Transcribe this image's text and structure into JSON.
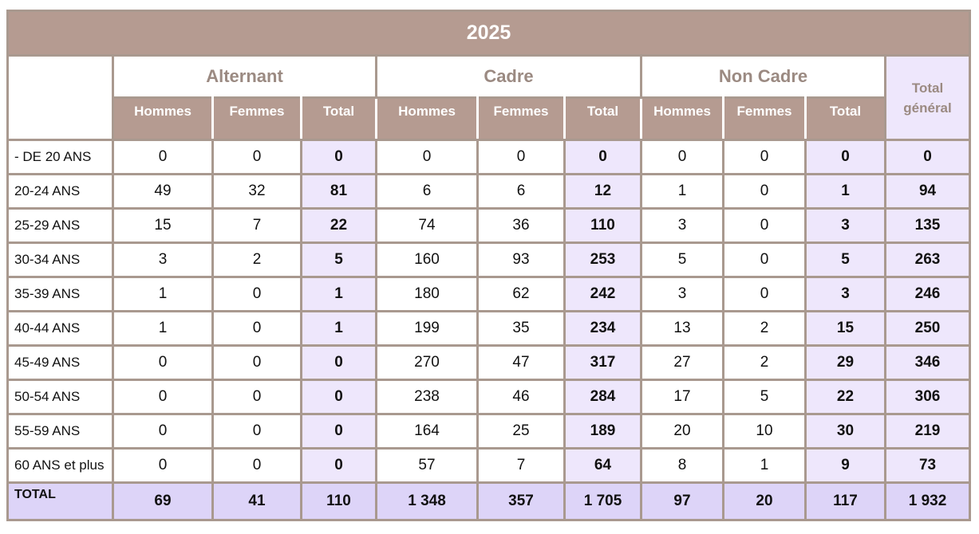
{
  "header": {
    "title": "2025"
  },
  "table": {
    "groups": [
      "Alternant",
      "Cadre",
      "Non Cadre"
    ],
    "total_header": "Total général",
    "subheaders": [
      "Hommes",
      "Femmes",
      "Total",
      "Hommes",
      "Femmes",
      "Total",
      "Hommes",
      "Femmes",
      "Total"
    ],
    "rows": [
      [
        "- DE 20 ANS",
        "0",
        "0",
        "0",
        "0",
        "0",
        "0",
        "0",
        "0",
        "0",
        "0"
      ],
      [
        "20-24 ANS",
        "49",
        "32",
        "81",
        "6",
        "6",
        "12",
        "1",
        "0",
        "1",
        "94"
      ],
      [
        "25-29 ANS",
        "15",
        "7",
        "22",
        "74",
        "36",
        "110",
        "3",
        "0",
        "3",
        "135"
      ],
      [
        "30-34 ANS",
        "3",
        "2",
        "5",
        "160",
        "93",
        "253",
        "5",
        "0",
        "5",
        "263"
      ],
      [
        "35-39 ANS",
        "1",
        "0",
        "1",
        "180",
        "62",
        "242",
        "3",
        "0",
        "3",
        "246"
      ],
      [
        "40-44 ANS",
        "1",
        "0",
        "1",
        "199",
        "35",
        "234",
        "13",
        "2",
        "15",
        "250"
      ],
      [
        "45-49 ANS",
        "0",
        "0",
        "0",
        "270",
        "47",
        "317",
        "27",
        "2",
        "29",
        "346"
      ],
      [
        "50-54 ANS",
        "0",
        "0",
        "0",
        "238",
        "46",
        "284",
        "17",
        "5",
        "22",
        "306"
      ],
      [
        "55-59 ANS",
        "0",
        "0",
        "0",
        "164",
        "25",
        "189",
        "20",
        "10",
        "30",
        "219"
      ],
      [
        "60 ANS et plus",
        "0",
        "0",
        "0",
        "57",
        "7",
        "64",
        "8",
        "1",
        "9",
        "73"
      ]
    ],
    "total_row": [
      "TOTAL",
      "69",
      "41",
      "110",
      "1 348",
      "357",
      "1 705",
      "97",
      "20",
      "117",
      "1 932"
    ]
  }
}
